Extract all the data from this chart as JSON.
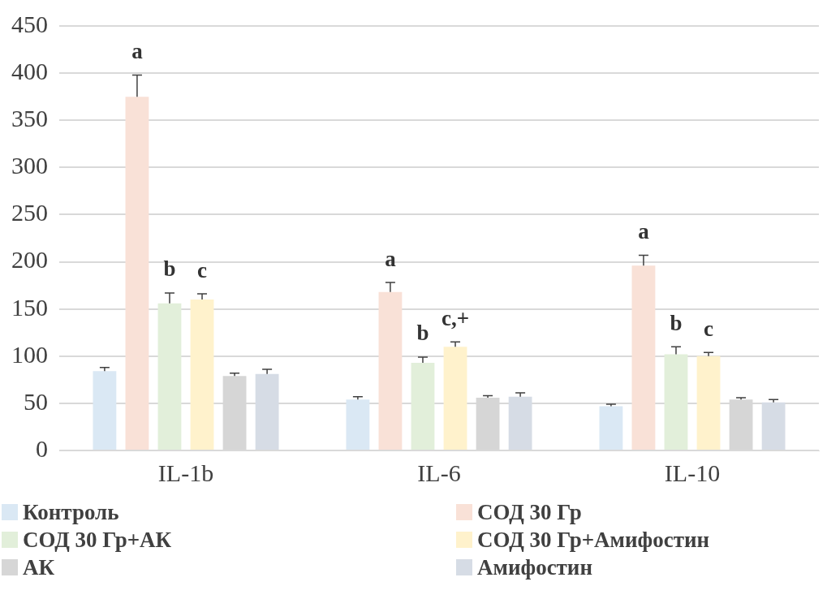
{
  "chart_data": {
    "type": "bar",
    "categories": [
      "IL-1b",
      "IL-6",
      "IL-10"
    ],
    "series": [
      {
        "name": "Контроль",
        "color": "#dae8f4",
        "values": [
          84,
          54,
          47
        ],
        "errors": [
          4,
          3,
          2
        ]
      },
      {
        "name": "СОД 30 Гр",
        "color": "#f9e1d7",
        "values": [
          375,
          168,
          196
        ],
        "errors": [
          23,
          10,
          11
        ],
        "value_labels": [
          "a",
          "a",
          "a"
        ]
      },
      {
        "name": "СОД 30 Гр+АК",
        "color": "#e2efda",
        "values": [
          156,
          93,
          102
        ],
        "errors": [
          11,
          6,
          8
        ],
        "value_labels": [
          "b",
          "b",
          "b"
        ]
      },
      {
        "name": "СОД 30 Гр+Амифостин",
        "color": "#fff2cc",
        "values": [
          160,
          110,
          100
        ],
        "errors": [
          6,
          5,
          4
        ],
        "value_labels": [
          "c",
          "c,+",
          "c"
        ]
      },
      {
        "name": "АК",
        "color": "#d6d6d6",
        "values": [
          79,
          56,
          54
        ],
        "errors": [
          3,
          2,
          2
        ]
      },
      {
        "name": "Амифостин",
        "color": "#d6dce5",
        "values": [
          81,
          57,
          51
        ],
        "errors": [
          5,
          4,
          3
        ]
      }
    ],
    "ylim": [
      0,
      450
    ],
    "yticks": [
      0,
      50,
      100,
      150,
      200,
      250,
      300,
      350,
      400,
      450
    ],
    "grid": "y",
    "legend": "bottom"
  }
}
